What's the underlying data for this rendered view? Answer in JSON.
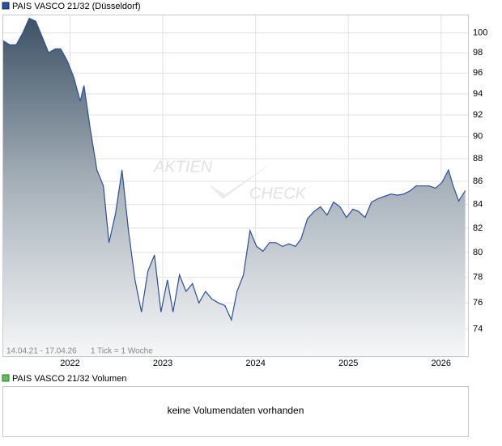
{
  "chart_data": {
    "type": "area",
    "title": "PAIS VASCO 21/32 (Düsseldorf)",
    "range_note": "14.04.21 - 17.04.26",
    "tick_note": "1 Tick = 1 Woche",
    "watermark": [
      "AKTIEN",
      "CHECK"
    ],
    "log": true,
    "grid": true,
    "line_color": "#2b4f9e",
    "x": [
      2021.28,
      2021.35,
      2021.42,
      2021.49,
      2021.56,
      2021.63,
      2021.7,
      2021.77,
      2021.84,
      2021.9,
      2021.97,
      2022.04,
      2022.11,
      2022.15,
      2022.22,
      2022.29,
      2022.36,
      2022.42,
      2022.49,
      2022.56,
      2022.63,
      2022.7,
      2022.77,
      2022.84,
      2022.91,
      2022.98,
      2023.05,
      2023.11,
      2023.18,
      2023.25,
      2023.32,
      2023.39,
      2023.46,
      2023.53,
      2023.6,
      2023.67,
      2023.74,
      2023.8,
      2023.87,
      2023.94,
      2024.01,
      2024.08,
      2024.15,
      2024.22,
      2024.29,
      2024.36,
      2024.43,
      2024.49,
      2024.56,
      2024.63,
      2024.7,
      2024.77,
      2024.84,
      2024.91,
      2024.98,
      2025.05,
      2025.11,
      2025.18,
      2025.25,
      2025.32,
      2025.39,
      2025.46,
      2025.53,
      2025.6,
      2025.67,
      2025.73,
      2025.8,
      2025.87,
      2025.94,
      2026.01,
      2026.08,
      2026.13,
      2026.19,
      2026.26
    ],
    "values": [
      99.2,
      98.8,
      98.8,
      100.0,
      101.5,
      101.2,
      99.6,
      98.0,
      98.4,
      98.4,
      97.2,
      95.6,
      93.3,
      94.8,
      90.6,
      87.0,
      85.6,
      80.8,
      83.2,
      87.0,
      81.8,
      77.8,
      75.3,
      78.5,
      79.8,
      75.3,
      77.8,
      75.3,
      78.2,
      76.9,
      77.5,
      76.0,
      76.9,
      76.3,
      76.0,
      75.8,
      74.7,
      76.9,
      78.2,
      81.8,
      80.5,
      80.1,
      80.8,
      80.8,
      80.5,
      80.7,
      80.5,
      81.1,
      82.8,
      83.4,
      83.8,
      83.1,
      84.2,
      83.8,
      82.9,
      83.6,
      83.4,
      82.9,
      84.2,
      84.5,
      84.7,
      84.9,
      84.8,
      84.9,
      85.2,
      85.6,
      85.6,
      85.6,
      85.4,
      85.9,
      87.0,
      85.6,
      84.3,
      85.2
    ],
    "xlim": [
      2021.28,
      2026.29
    ],
    "xticks": [
      2022,
      2023,
      2024,
      2025,
      2026
    ],
    "ylim": [
      72.0,
      101.8
    ],
    "yticks": [
      74,
      76,
      78,
      80,
      82,
      84,
      86,
      88,
      90,
      92,
      94,
      96,
      98,
      100
    ],
    "volume_title": "PAIS VASCO 21/32 Volumen",
    "volume_note": "keine Volumendaten vorhanden"
  }
}
